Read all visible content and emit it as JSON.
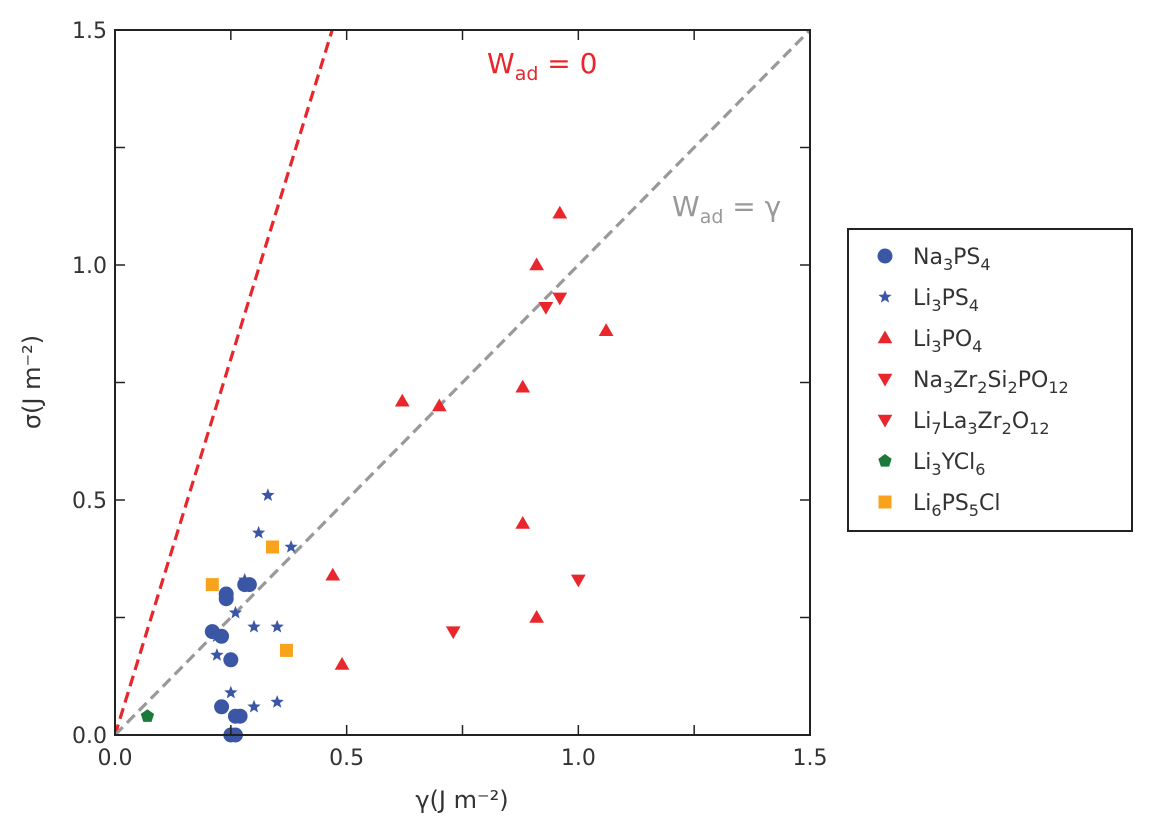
{
  "chart_data": {
    "type": "scatter",
    "xlabel": "γ(J m⁻²)",
    "ylabel": "σ(J m⁻²)",
    "xlim": [
      0,
      1.5
    ],
    "ylim": [
      0,
      1.5
    ],
    "xticks": [
      "0.0",
      "0.5",
      "1.0",
      "1.5"
    ],
    "yticks": [
      "0.0",
      "0.5",
      "1.0",
      "1.5"
    ],
    "legend_position": "right",
    "reference_lines": [
      {
        "label": "W_ad = 0",
        "label_main": "W",
        "label_sub": "ad",
        "label_rest": " = 0",
        "slope": 3.2,
        "color": "#e8262b"
      },
      {
        "label": "W_ad = γ",
        "label_main": "W",
        "label_sub": "ad",
        "label_rest": " = γ",
        "slope": 1.0,
        "color": "#999999"
      }
    ],
    "series": [
      {
        "name": "Na3PS4",
        "legend": [
          {
            "t": "Na"
          },
          {
            "t": "3",
            "sub": true
          },
          {
            "t": "PS"
          },
          {
            "t": "4",
            "sub": true
          }
        ],
        "marker": "circle",
        "color": "#3a56a5",
        "points": [
          [
            0.24,
            0.3
          ],
          [
            0.24,
            0.29
          ],
          [
            0.28,
            0.32
          ],
          [
            0.29,
            0.32
          ],
          [
            0.21,
            0.22
          ],
          [
            0.23,
            0.21
          ],
          [
            0.25,
            0.16
          ],
          [
            0.23,
            0.06
          ],
          [
            0.26,
            0.04
          ],
          [
            0.27,
            0.04
          ],
          [
            0.25,
            0.0
          ],
          [
            0.26,
            0.0
          ]
        ]
      },
      {
        "name": "Li3PS4",
        "legend": [
          {
            "t": "Li"
          },
          {
            "t": "3",
            "sub": true
          },
          {
            "t": "PS"
          },
          {
            "t": "4",
            "sub": true
          }
        ],
        "marker": "star",
        "color": "#3a56a5",
        "points": [
          [
            0.33,
            0.51
          ],
          [
            0.31,
            0.43
          ],
          [
            0.38,
            0.4
          ],
          [
            0.28,
            0.33
          ],
          [
            0.26,
            0.26
          ],
          [
            0.3,
            0.23
          ],
          [
            0.35,
            0.23
          ],
          [
            0.22,
            0.21
          ],
          [
            0.22,
            0.17
          ],
          [
            0.25,
            0.09
          ],
          [
            0.35,
            0.07
          ],
          [
            0.3,
            0.06
          ]
        ]
      },
      {
        "name": "Li3PO4",
        "legend": [
          {
            "t": "Li"
          },
          {
            "t": "3",
            "sub": true
          },
          {
            "t": "PO"
          },
          {
            "t": "4",
            "sub": true
          }
        ],
        "marker": "triangle-up",
        "color": "#e8262b",
        "points": [
          [
            0.96,
            1.11
          ],
          [
            0.91,
            1.0
          ],
          [
            1.06,
            0.86
          ],
          [
            0.88,
            0.74
          ],
          [
            0.62,
            0.71
          ],
          [
            0.7,
            0.7
          ],
          [
            0.88,
            0.45
          ],
          [
            0.47,
            0.34
          ],
          [
            0.91,
            0.25
          ],
          [
            0.49,
            0.15
          ]
        ]
      },
      {
        "name": "Na3Zr2Si2PO12",
        "legend": [
          {
            "t": "Na"
          },
          {
            "t": "3",
            "sub": true
          },
          {
            "t": "Zr"
          },
          {
            "t": "2",
            "sub": true
          },
          {
            "t": "Si"
          },
          {
            "t": "2",
            "sub": true
          },
          {
            "t": "PO"
          },
          {
            "t": "12",
            "sub": true
          }
        ],
        "marker": "triangle-down",
        "color": "#e8262b",
        "points": [
          [
            0.96,
            0.93
          ],
          [
            0.93,
            0.91
          ],
          [
            1.0,
            0.33
          ],
          [
            0.73,
            0.22
          ]
        ]
      },
      {
        "name": "Li7La3Zr2O12",
        "legend": [
          {
            "t": "Li"
          },
          {
            "t": "7",
            "sub": true
          },
          {
            "t": "La"
          },
          {
            "t": "3",
            "sub": true
          },
          {
            "t": "Zr"
          },
          {
            "t": "2",
            "sub": true
          },
          {
            "t": "O"
          },
          {
            "t": "12",
            "sub": true
          }
        ],
        "marker": "triangle-down",
        "color": "#e8262b",
        "points": []
      },
      {
        "name": "Li3YCl6",
        "legend": [
          {
            "t": "Li"
          },
          {
            "t": "3",
            "sub": true
          },
          {
            "t": "YCl"
          },
          {
            "t": "6",
            "sub": true
          }
        ],
        "marker": "pentagon",
        "color": "#1a7a3a",
        "points": [
          [
            0.07,
            0.04
          ]
        ]
      },
      {
        "name": "Li6PS5Cl",
        "legend": [
          {
            "t": "Li"
          },
          {
            "t": "6",
            "sub": true
          },
          {
            "t": "PS"
          },
          {
            "t": "5",
            "sub": true
          },
          {
            "t": "Cl"
          }
        ],
        "marker": "square",
        "color": "#f8a31b",
        "points": [
          [
            0.34,
            0.4
          ],
          [
            0.21,
            0.32
          ],
          [
            0.37,
            0.18
          ]
        ]
      }
    ]
  }
}
